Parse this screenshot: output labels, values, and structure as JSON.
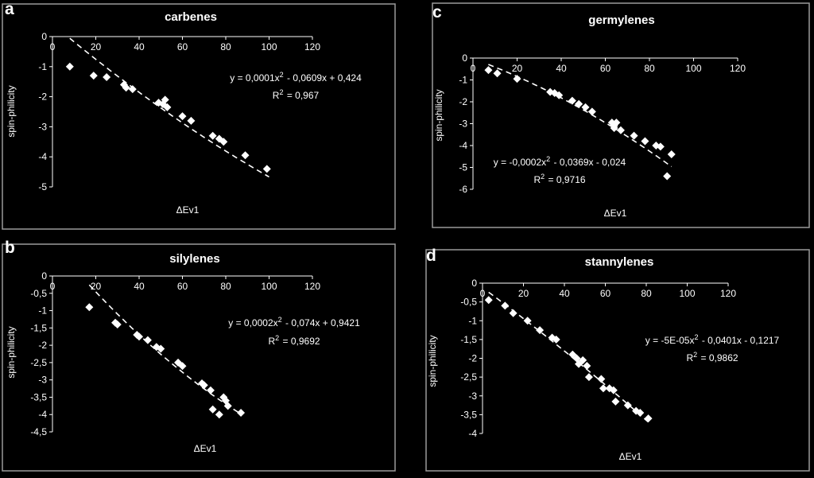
{
  "panels": [
    {
      "letter": "a",
      "chart_data": {
        "type": "scatter",
        "title": "carbenes",
        "xlabel": "ΔEv1",
        "ylabel": "spin-philicity",
        "xlim": [
          0,
          120
        ],
        "ylim": [
          -5,
          0
        ],
        "xticks": [
          "0",
          "20",
          "40",
          "60",
          "80",
          "100",
          "120"
        ],
        "yticks": [
          "0",
          "-1",
          "-2",
          "-3",
          "-4",
          "-5"
        ],
        "equation": "y = 0,0001x² - 0,0609x + 0,424",
        "r2": "R² = 0,967",
        "fit": [
          0.0001,
          -0.0609,
          0.424
        ],
        "fit_range": [
          8,
          100
        ],
        "points": [
          [
            8,
            -1.0
          ],
          [
            19,
            -1.3
          ],
          [
            25,
            -1.35
          ],
          [
            33,
            -1.6
          ],
          [
            34,
            -1.7
          ],
          [
            37,
            -1.75
          ],
          [
            49,
            -2.2
          ],
          [
            51,
            -2.25
          ],
          [
            52,
            -2.1
          ],
          [
            53,
            -2.35
          ],
          [
            60,
            -2.65
          ],
          [
            64,
            -2.8
          ],
          [
            74,
            -3.3
          ],
          [
            77,
            -3.4
          ],
          [
            79,
            -3.5
          ],
          [
            89,
            -3.95
          ],
          [
            99,
            -4.4
          ]
        ]
      }
    },
    {
      "letter": "b",
      "chart_data": {
        "type": "scatter",
        "title": "silylenes",
        "xlabel": "ΔEv1",
        "ylabel": "spin-philicity",
        "xlim": [
          0,
          120
        ],
        "ylim": [
          -4.5,
          0
        ],
        "xticks": [
          "0",
          "20",
          "40",
          "60",
          "80",
          "100",
          "120"
        ],
        "yticks": [
          "0",
          "-0,5",
          "-1",
          "-1,5",
          "-2",
          "-2,5",
          "-3",
          "-3,5",
          "-4",
          "-4,5"
        ],
        "equation": "y = 0,0002x² - 0,074x + 0,9421",
        "r2": "R² = 0,9692",
        "fit": [
          0.0002,
          -0.074,
          0.9421
        ],
        "fit_range": [
          17,
          87
        ],
        "points": [
          [
            17,
            -0.9
          ],
          [
            29,
            -1.35
          ],
          [
            30,
            -1.4
          ],
          [
            39,
            -1.7
          ],
          [
            40,
            -1.75
          ],
          [
            44,
            -1.85
          ],
          [
            48,
            -2.05
          ],
          [
            50,
            -2.1
          ],
          [
            58,
            -2.5
          ],
          [
            60,
            -2.6
          ],
          [
            69,
            -3.1
          ],
          [
            70,
            -3.15
          ],
          [
            73,
            -3.3
          ],
          [
            79,
            -3.5
          ],
          [
            80,
            -3.6
          ],
          [
            81,
            -3.75
          ],
          [
            74,
            -3.85
          ],
          [
            77,
            -4.0
          ],
          [
            87,
            -3.95
          ]
        ]
      }
    },
    {
      "letter": "c",
      "chart_data": {
        "type": "scatter",
        "title": "germylenes",
        "xlabel": "ΔEv1",
        "ylabel": "spin-philicity",
        "xlim": [
          0,
          120
        ],
        "ylim": [
          -6,
          0
        ],
        "xticks": [
          "0",
          "20",
          "40",
          "60",
          "80",
          "100",
          "120"
        ],
        "yticks": [
          "0",
          "-1",
          "-2",
          "-3",
          "-4",
          "-5",
          "-6"
        ],
        "equation": "y = -0,0002x² - 0,0369x - 0,024",
        "r2": "R² = 0,9716",
        "fit": [
          -0.0002,
          -0.0369,
          -0.024
        ],
        "fit_range": [
          7,
          90
        ],
        "points": [
          [
            7,
            -0.55
          ],
          [
            11,
            -0.7
          ],
          [
            20,
            -0.95
          ],
          [
            35,
            -1.55
          ],
          [
            37,
            -1.6
          ],
          [
            39,
            -1.7
          ],
          [
            45,
            -1.95
          ],
          [
            48,
            -2.1
          ],
          [
            51,
            -2.25
          ],
          [
            54,
            -2.45
          ],
          [
            63,
            -2.95
          ],
          [
            64,
            -3.1
          ],
          [
            65,
            -2.95
          ],
          [
            64,
            -3.2
          ],
          [
            67,
            -3.3
          ],
          [
            73,
            -3.55
          ],
          [
            78,
            -3.8
          ],
          [
            83,
            -4.0
          ],
          [
            85,
            -4.05
          ],
          [
            90,
            -4.4
          ],
          [
            88,
            -5.4
          ]
        ]
      }
    },
    {
      "letter": "d",
      "chart_data": {
        "type": "scatter",
        "title": "stannylenes",
        "xlabel": "ΔEv1",
        "ylabel": "spin-philicity",
        "xlim": [
          0,
          120
        ],
        "ylim": [
          -4,
          0
        ],
        "xticks": [
          "0",
          "20",
          "40",
          "60",
          "80",
          "100",
          "120"
        ],
        "yticks": [
          "0",
          "-0,5",
          "-1",
          "-1,5",
          "-2",
          "-2,5",
          "-3",
          "-3,5",
          "-4"
        ],
        "equation": "y = -5E-05x² - 0,0401x - 0,1217",
        "r2": "R² = 0,9862",
        "fit": [
          -5e-05,
          -0.0401,
          -0.1217
        ],
        "fit_range": [
          3,
          81
        ],
        "points": [
          [
            3,
            -0.45
          ],
          [
            11,
            -0.6
          ],
          [
            15,
            -0.8
          ],
          [
            22,
            -1.0
          ],
          [
            28,
            -1.25
          ],
          [
            34,
            -1.45
          ],
          [
            36,
            -1.5
          ],
          [
            44,
            -1.9
          ],
          [
            46,
            -2.0
          ],
          [
            47,
            -2.15
          ],
          [
            49,
            -2.05
          ],
          [
            51,
            -2.2
          ],
          [
            52,
            -2.5
          ],
          [
            58,
            -2.55
          ],
          [
            59,
            -2.8
          ],
          [
            62,
            -2.8
          ],
          [
            64,
            -2.85
          ],
          [
            65,
            -3.15
          ],
          [
            71,
            -3.25
          ],
          [
            75,
            -3.4
          ],
          [
            77,
            -3.45
          ],
          [
            81,
            -3.6
          ]
        ]
      }
    }
  ]
}
